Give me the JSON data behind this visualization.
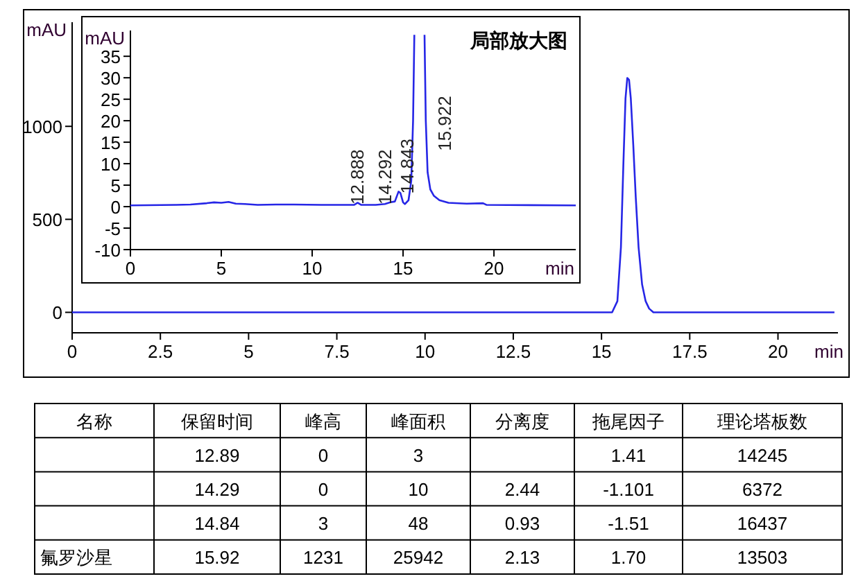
{
  "chart_data": [
    {
      "type": "line",
      "xlabel": "min",
      "ylabel": "mAU",
      "xlim": [
        0,
        21.7
      ],
      "ylim": [
        -110,
        1560
      ],
      "xticks": [
        0,
        2.5,
        5,
        7.5,
        10,
        12.5,
        15,
        17.5,
        20
      ],
      "yticks": [
        0,
        500,
        1000
      ],
      "series": [
        {
          "color": "#2626e6",
          "x": [
            0,
            15.3,
            15.45,
            15.55,
            15.62,
            15.68,
            15.73,
            15.78,
            15.83,
            15.9,
            15.97,
            16.05,
            16.15,
            16.25,
            16.35,
            16.47,
            21.6
          ],
          "values": [
            0,
            0,
            60,
            350,
            800,
            1150,
            1260,
            1250,
            1150,
            900,
            620,
            350,
            150,
            60,
            20,
            0,
            0
          ]
        }
      ]
    },
    {
      "type": "line",
      "title": "局部放大图",
      "xlabel": "min",
      "ylabel": "mAU",
      "xlim": [
        0,
        24.5
      ],
      "ylim": [
        -10,
        41
      ],
      "xticks": [
        0,
        5,
        10,
        15,
        20
      ],
      "yticks": [
        -10,
        -5,
        0,
        5,
        10,
        15,
        20,
        25,
        30,
        35
      ],
      "series": [
        {
          "color": "#2626e6",
          "x": [
            0,
            2.5,
            3.3,
            4.2,
            4.6,
            5.0,
            5.4,
            5.8,
            6.3,
            7.0,
            8.0,
            9.0,
            10.5,
            12.3,
            12.5,
            12.7,
            13.5,
            14.0,
            14.3,
            14.55,
            14.75,
            14.85,
            15.0,
            15.1,
            15.3,
            15.45,
            15.55,
            15.62,
            15.63,
            16.18,
            16.25,
            16.35,
            16.5,
            16.7,
            17.0,
            17.5,
            18.5,
            19.4,
            19.6,
            24.5
          ],
          "values": [
            0.3,
            0.4,
            0.5,
            0.8,
            1.0,
            0.9,
            1.1,
            0.7,
            0.6,
            0.4,
            0.5,
            0.5,
            0.4,
            0.4,
            0.9,
            0.4,
            0.4,
            0.6,
            1.0,
            1.2,
            3.5,
            3.2,
            1.0,
            0.6,
            1.5,
            6,
            20,
            40,
            null,
            40,
            20,
            8,
            4,
            2.5,
            1.5,
            0.9,
            0.7,
            0.8,
            0.4,
            0.3
          ]
        }
      ],
      "annotations": [
        {
          "text": "12.888",
          "x": 12.45,
          "y": 0.5
        },
        {
          "text": "14.292",
          "x": 13.95,
          "y": 0.5
        },
        {
          "text": "14.843",
          "x": 15.2,
          "y": 3
        },
        "15.922"
      ]
    },
    {
      "type": "other",
      "categories": [
        "名称",
        "保留时间",
        "峰高",
        "峰面积",
        "分离度",
        "拖尾因子",
        "理论塔板数"
      ],
      "cell_labels": [
        [
          null,
          "12.89",
          "0",
          "3",
          null,
          "1.41",
          "14245"
        ],
        [
          null,
          "14.29",
          "0",
          "10",
          "2.44",
          "-1.101",
          "6372"
        ],
        [
          null,
          "14.84",
          "3",
          "48",
          "0.93",
          "-1.51",
          "16437"
        ],
        [
          "氟罗沙星",
          "15.92",
          "1231",
          "25942",
          "2.13",
          "1.70",
          "13503"
        ]
      ]
    }
  ]
}
